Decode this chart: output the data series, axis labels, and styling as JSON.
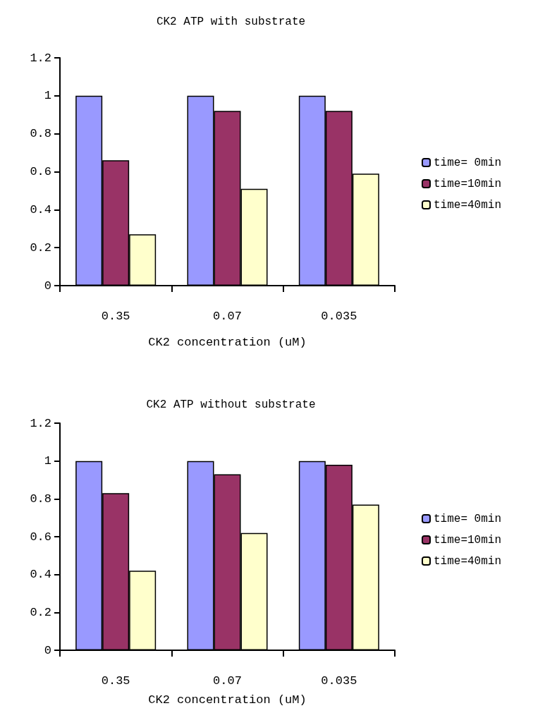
{
  "chart_data": [
    {
      "type": "bar",
      "title": "CK2 ATP with substrate",
      "xlabel": "CK2 concentration (uM)",
      "categories": [
        "0.35",
        "0.07",
        "0.035"
      ],
      "series": [
        {
          "name": "time= 0min",
          "color": "#9999ff",
          "values": [
            1,
            1,
            1
          ]
        },
        {
          "name": "time=10min",
          "color": "#993366",
          "values": [
            0.66,
            0.92,
            0.92
          ]
        },
        {
          "name": "time=40min",
          "color": "#ffffcc",
          "values": [
            0.27,
            0.51,
            0.59
          ]
        }
      ],
      "ylim": [
        0,
        1.2
      ],
      "yticks": [
        0,
        0.2,
        0.4,
        0.6,
        0.8,
        1,
        1.2
      ],
      "grid": false,
      "legend": "right"
    },
    {
      "type": "bar",
      "title": "CK2 ATP without substrate",
      "xlabel": "CK2 concentration (uM)",
      "categories": [
        "0.35",
        "0.07",
        "0.035"
      ],
      "series": [
        {
          "name": "time= 0min",
          "color": "#9999ff",
          "values": [
            1,
            1,
            1
          ]
        },
        {
          "name": "time=10min",
          "color": "#993366",
          "values": [
            0.83,
            0.93,
            0.98
          ]
        },
        {
          "name": "time=40min",
          "color": "#ffffcc",
          "values": [
            0.42,
            0.62,
            0.77
          ]
        }
      ],
      "ylim": [
        0,
        1.2
      ],
      "yticks": [
        0,
        0.2,
        0.4,
        0.6,
        0.8,
        1,
        1.2
      ],
      "grid": false,
      "legend": "right"
    }
  ]
}
